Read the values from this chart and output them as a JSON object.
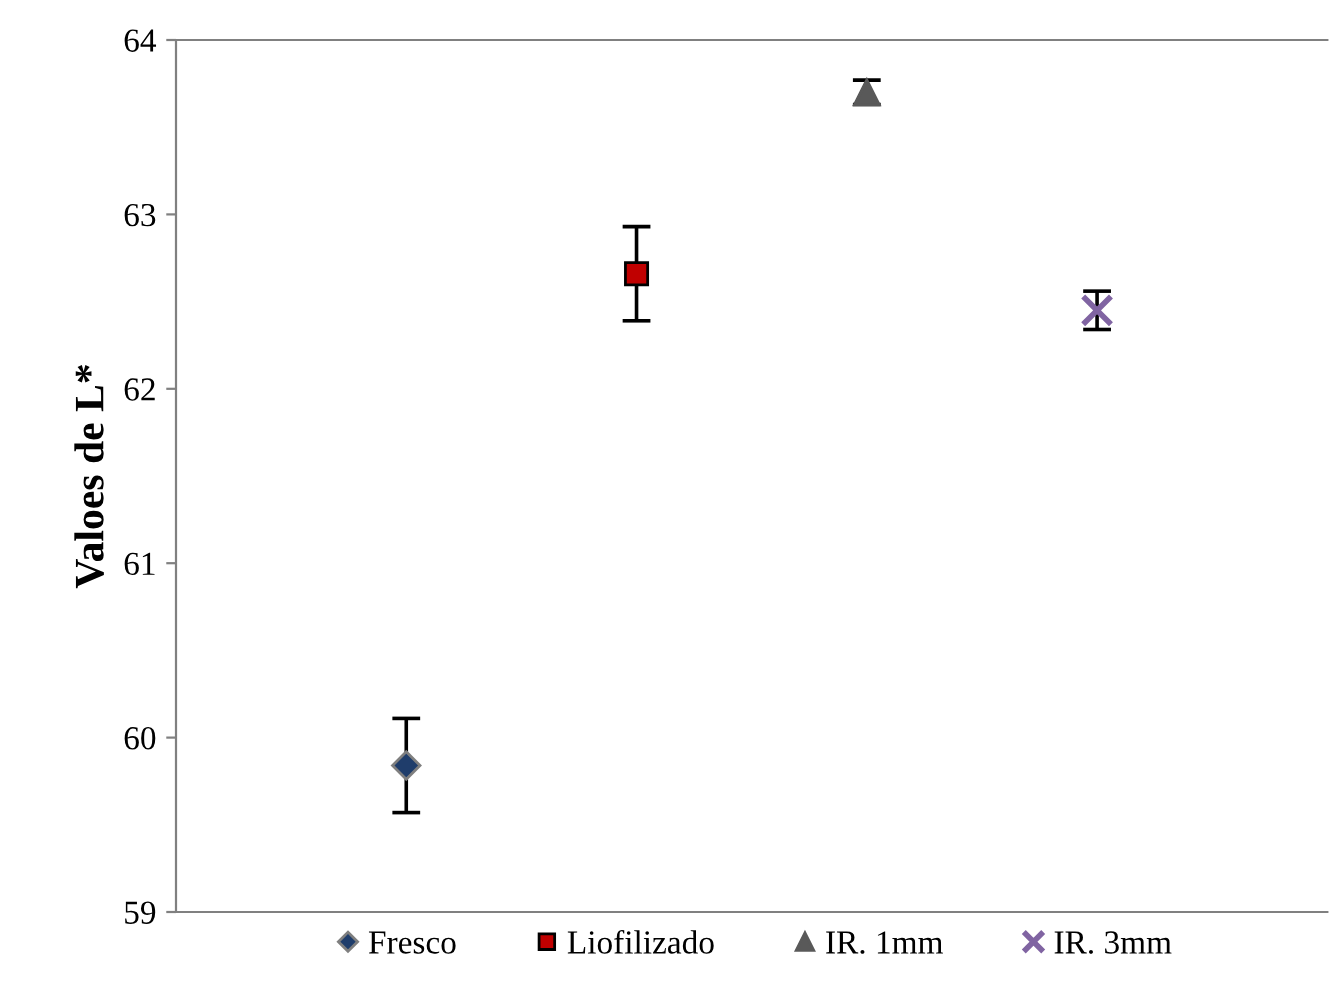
{
  "chart_data": {
    "type": "scatter",
    "ylabel": "Valoes de L*",
    "categories": [
      null,
      null,
      null,
      null
    ],
    "series": [
      {
        "name": "Fresco",
        "color": "#1f3d6b",
        "marker": "diamond",
        "values": [
          59.84,
          null,
          null,
          null
        ],
        "errors": [
          0.27,
          null,
          null,
          null
        ]
      },
      {
        "name": "Liofilizado",
        "color": "#c00000",
        "marker": "square",
        "values": [
          null,
          62.66,
          null,
          null
        ],
        "errors": [
          null,
          0.27,
          null,
          null
        ]
      },
      {
        "name": "IR. 1mm",
        "color": "#595959",
        "marker": "triangle",
        "values": [
          null,
          null,
          63.7,
          null
        ],
        "errors": [
          null,
          null,
          0.07,
          null
        ]
      },
      {
        "name": "IR. 3mm",
        "color": "#8064a2",
        "marker": "cross",
        "values": [
          null,
          null,
          null,
          62.45
        ],
        "errors": [
          null,
          null,
          null,
          0.11
        ]
      }
    ],
    "ylim": [
      59,
      64
    ],
    "yticks": [
      59,
      60,
      61,
      62,
      63,
      64
    ],
    "grid": false,
    "legend": "bottom"
  }
}
